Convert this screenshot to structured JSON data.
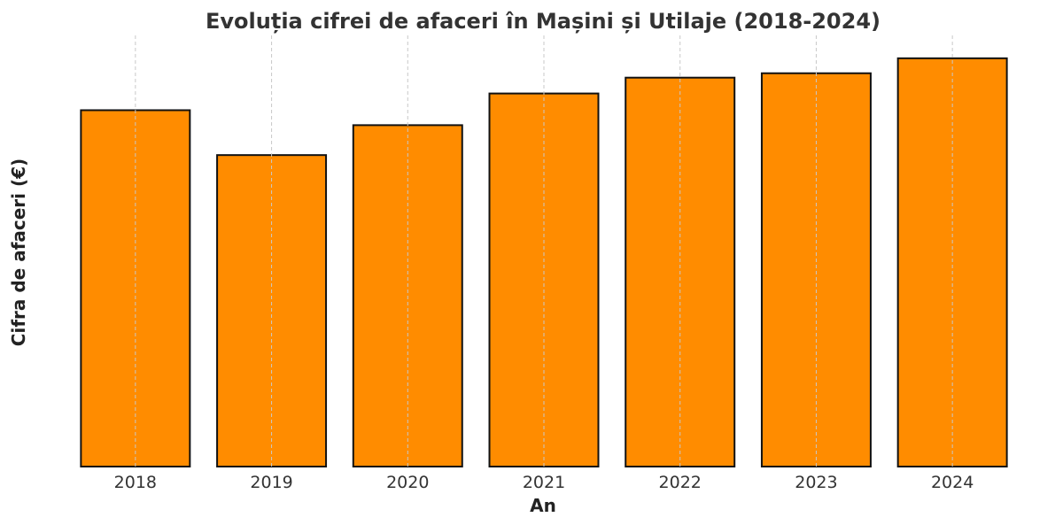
{
  "chart_data": {
    "type": "bar",
    "title": "Evoluția cifrei de afaceri în Mașini și Utilaje (2018-2024)",
    "xlabel": "An",
    "ylabel": "Cifra de afaceri (€)",
    "categories": [
      "2018",
      "2019",
      "2020",
      "2021",
      "2022",
      "2023",
      "2024"
    ],
    "values": [
      405,
      354,
      388,
      424,
      442,
      447,
      464
    ],
    "ylim": [
      0,
      490
    ],
    "y_ticks_visible": false,
    "grid": "vertical-dashed",
    "legend": "none",
    "bar_color": "#FF8C00",
    "bar_edge_color": "#111111"
  }
}
